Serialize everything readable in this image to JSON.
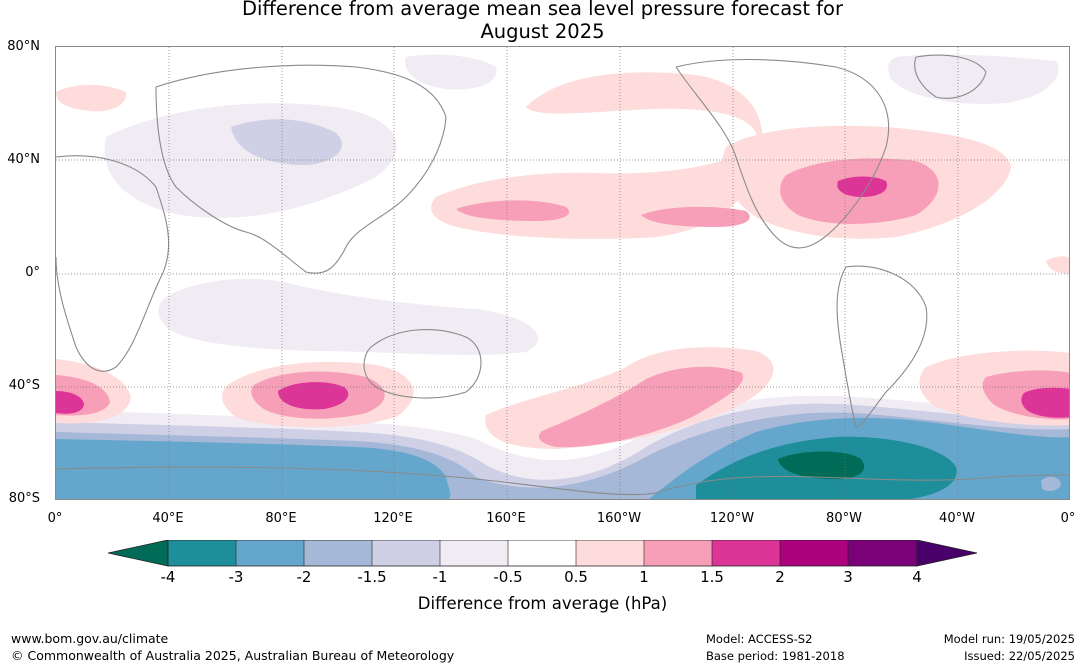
{
  "title": {
    "line1": "Difference from average mean sea level pressure forecast for",
    "line2": "August 2025"
  },
  "map": {
    "lat_labels": [
      "80°N",
      "40°N",
      "0°",
      "40°S",
      "80°S"
    ],
    "lon_labels": [
      "0°",
      "40°E",
      "80°E",
      "120°E",
      "160°E",
      "160°W",
      "120°W",
      "80°W",
      "40°W",
      "0°"
    ],
    "land_outline_color": "#8a8a8a"
  },
  "colorbar": {
    "ticks": [
      "-4",
      "-3",
      "-2",
      "-1.5",
      "-1",
      "-0.5",
      "0.5",
      "1",
      "1.5",
      "2",
      "3",
      "4"
    ],
    "colors": {
      "below_-4": "#006b57",
      "-4_-3": "#1e8f9a",
      "-3_-2": "#65a7cc",
      "-2_-1.5": "#a5b8d7",
      "-1.5_-1": "#cfd0e6",
      "-1_-0.5": "#f1ebf3",
      "-0.5_0.5": "#ffffff",
      "0.5_1": "#fddcdb",
      "1_1.5": "#f79fb9",
      "1.5_2": "#dd3597",
      "2_3": "#ae017e",
      "3_4": "#7a0177",
      "above_4": "#49006a"
    },
    "label": "Difference from average (hPa)"
  },
  "footer": {
    "website": "www.bom.gov.au/climate",
    "copyright": "© Commonwealth of Australia 2025, Australian Bureau of Meteorology",
    "model": "Model: ACCESS-S2",
    "base_period": "Base period: 1981-2018",
    "model_run": "Model run: 19/05/2025",
    "issued": "Issued: 22/05/2025"
  }
}
